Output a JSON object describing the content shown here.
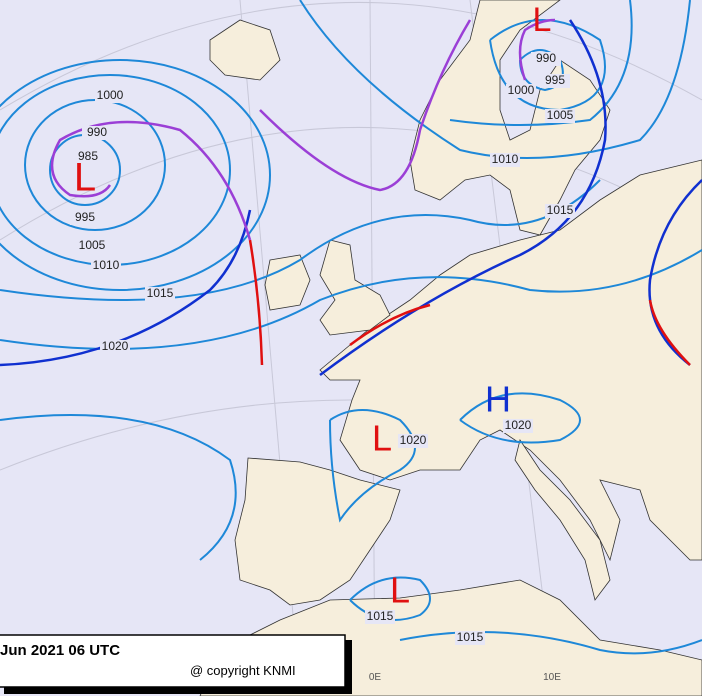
{
  "title": "Jun 2021 06 UTC",
  "copyright": "@ copyright KNMI",
  "longitude_labels": [
    "0E",
    "10E"
  ],
  "pressure_centers": [
    {
      "label": "L",
      "color": "#e01010"
    },
    {
      "label": "L",
      "color": "#e01010"
    },
    {
      "label": "L",
      "color": "#e01010"
    },
    {
      "label": "H",
      "color": "#1030d0"
    },
    {
      "label": "L",
      "color": "#e01010"
    }
  ],
  "isobar_labels": [
    1000,
    990,
    985,
    995,
    1005,
    1010,
    1015,
    1020,
    990,
    995,
    1000,
    1005,
    1010,
    1015,
    1020,
    1020,
    1015,
    1015
  ]
}
